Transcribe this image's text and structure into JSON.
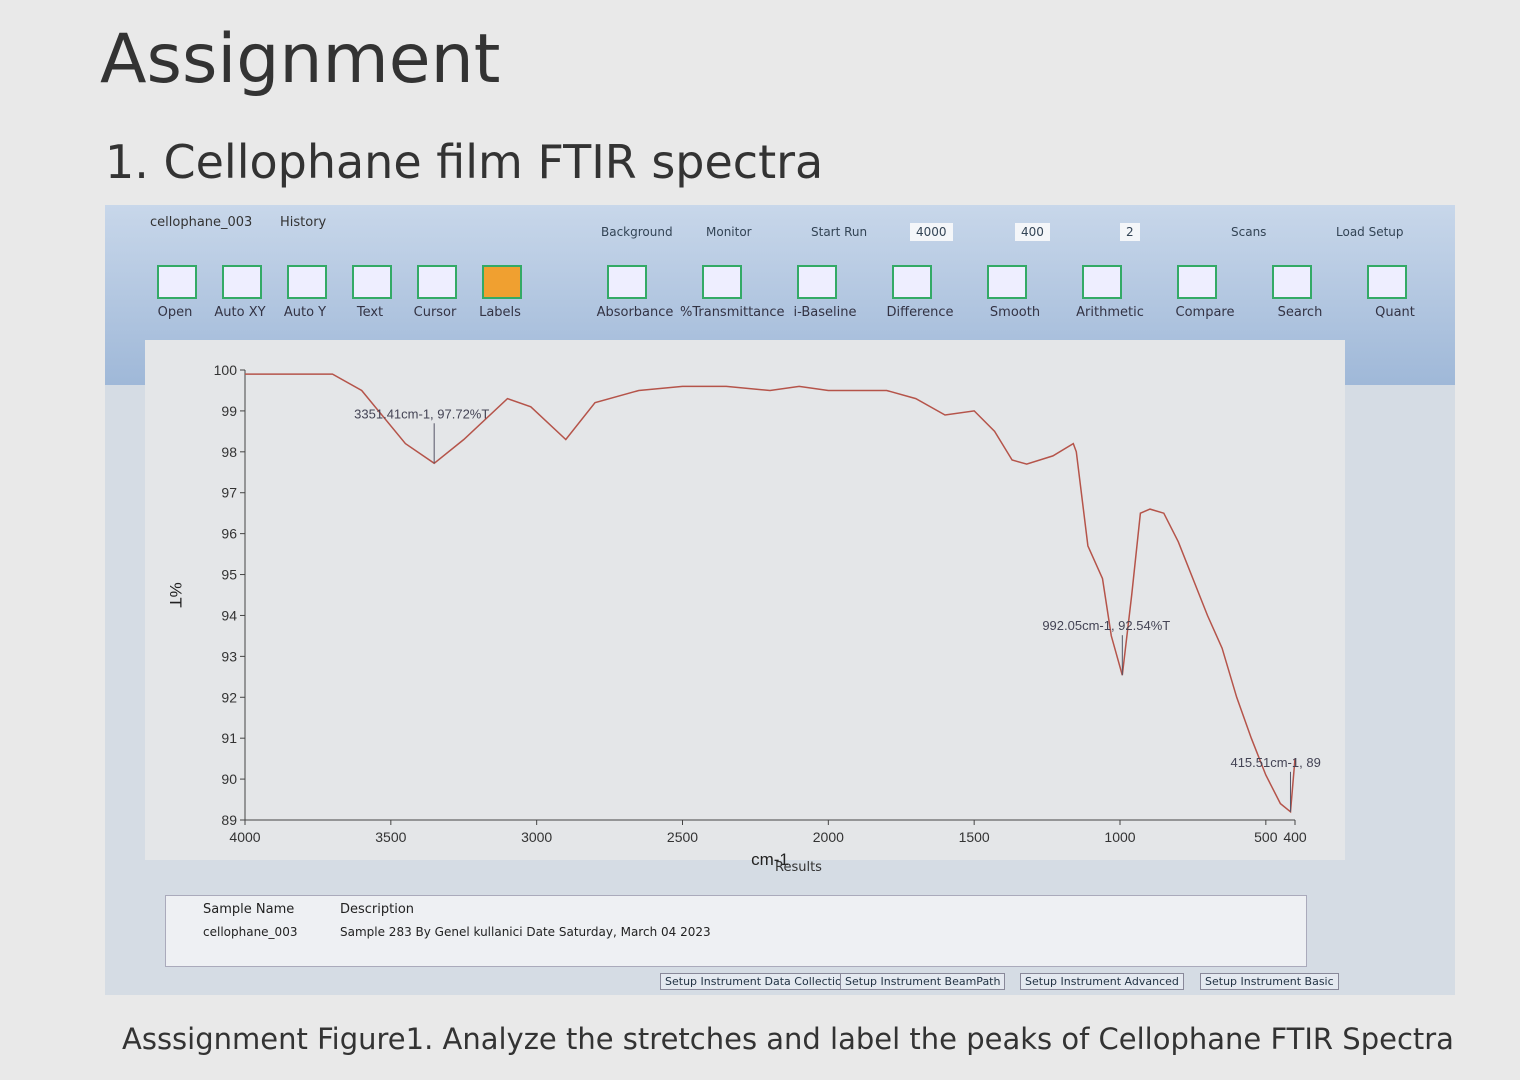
{
  "heading": "Assignment",
  "subheading": "1. Cellophane film FTIR spectra",
  "window": {
    "tabs": [
      "cellophane_003",
      "History"
    ],
    "top_controls": [
      "Background",
      "Monitor",
      "Start Run",
      "4000",
      "400",
      "2",
      "Scans",
      "Load Setup"
    ],
    "buttons": [
      "Open",
      "Auto XY",
      "Auto Y",
      "Text",
      "Cursor",
      "Labels",
      "Absorbance",
      "%Transmittance",
      "i-Baseline",
      "Difference",
      "Smooth",
      "Arithmetic",
      "Compare",
      "Search",
      "Quant"
    ],
    "results": {
      "title": "Results",
      "headers": [
        "Sample Name",
        "Description"
      ],
      "row": [
        "cellophane_003",
        "Sample 283 By Genel kullanici Date Saturday, March 04 2023"
      ]
    },
    "bottom_tabs": [
      "Setup Instrument Data Collection",
      "Setup Instrument BeamPath",
      "Setup Instrument Advanced",
      "Setup Instrument Basic"
    ]
  },
  "chart_data": {
    "type": "line",
    "x_label": "cm-1",
    "y_label": "%T",
    "color": "#b5544a",
    "x": [
      4000,
      3850,
      3700,
      3600,
      3450,
      3351.41,
      3250,
      3100,
      3020,
      2900,
      2800,
      2650,
      2500,
      2350,
      2200,
      2100,
      2000,
      1800,
      1700,
      1600,
      1500,
      1430,
      1370,
      1320,
      1230,
      1160,
      1150,
      1110,
      1060,
      1030,
      992.05,
      960,
      930,
      897,
      850,
      800,
      700,
      650,
      600,
      550,
      500,
      450,
      415.51,
      400
    ],
    "values": [
      99.9,
      99.9,
      99.9,
      99.5,
      98.2,
      97.72,
      98.3,
      99.3,
      99.1,
      98.3,
      99.2,
      99.5,
      99.6,
      99.6,
      99.5,
      99.6,
      99.5,
      99.5,
      99.3,
      98.9,
      99.0,
      98.5,
      97.8,
      97.7,
      97.9,
      98.2,
      98.0,
      95.7,
      94.9,
      93.5,
      92.54,
      94.5,
      96.5,
      96.6,
      96.5,
      95.8,
      94.0,
      93.2,
      92.0,
      91.0,
      90.1,
      89.4,
      89.2,
      90.5
    ],
    "xlim": [
      4000,
      400
    ],
    "xticks": [
      4000,
      3500,
      3000,
      2500,
      2000,
      1500,
      1000,
      500,
      400
    ],
    "ylim": [
      89,
      100
    ],
    "yticks": [
      89,
      90,
      91,
      92,
      93,
      94,
      95,
      96,
      97,
      98,
      99,
      100
    ],
    "annotations": [
      {
        "text": "3351.41cm-1, 97.72%T",
        "x": 3351.41,
        "y": 97.72
      },
      {
        "text": "992.05cm-1, 92.54%T",
        "x": 992.05,
        "y": 92.54
      },
      {
        "text": "415.51cm-1, 89",
        "x": 415.51,
        "y": 89.2
      }
    ]
  },
  "caption": "Asssignment Figure1. Analyze the stretches and label the peaks of Cellophane FTIR Spectra"
}
